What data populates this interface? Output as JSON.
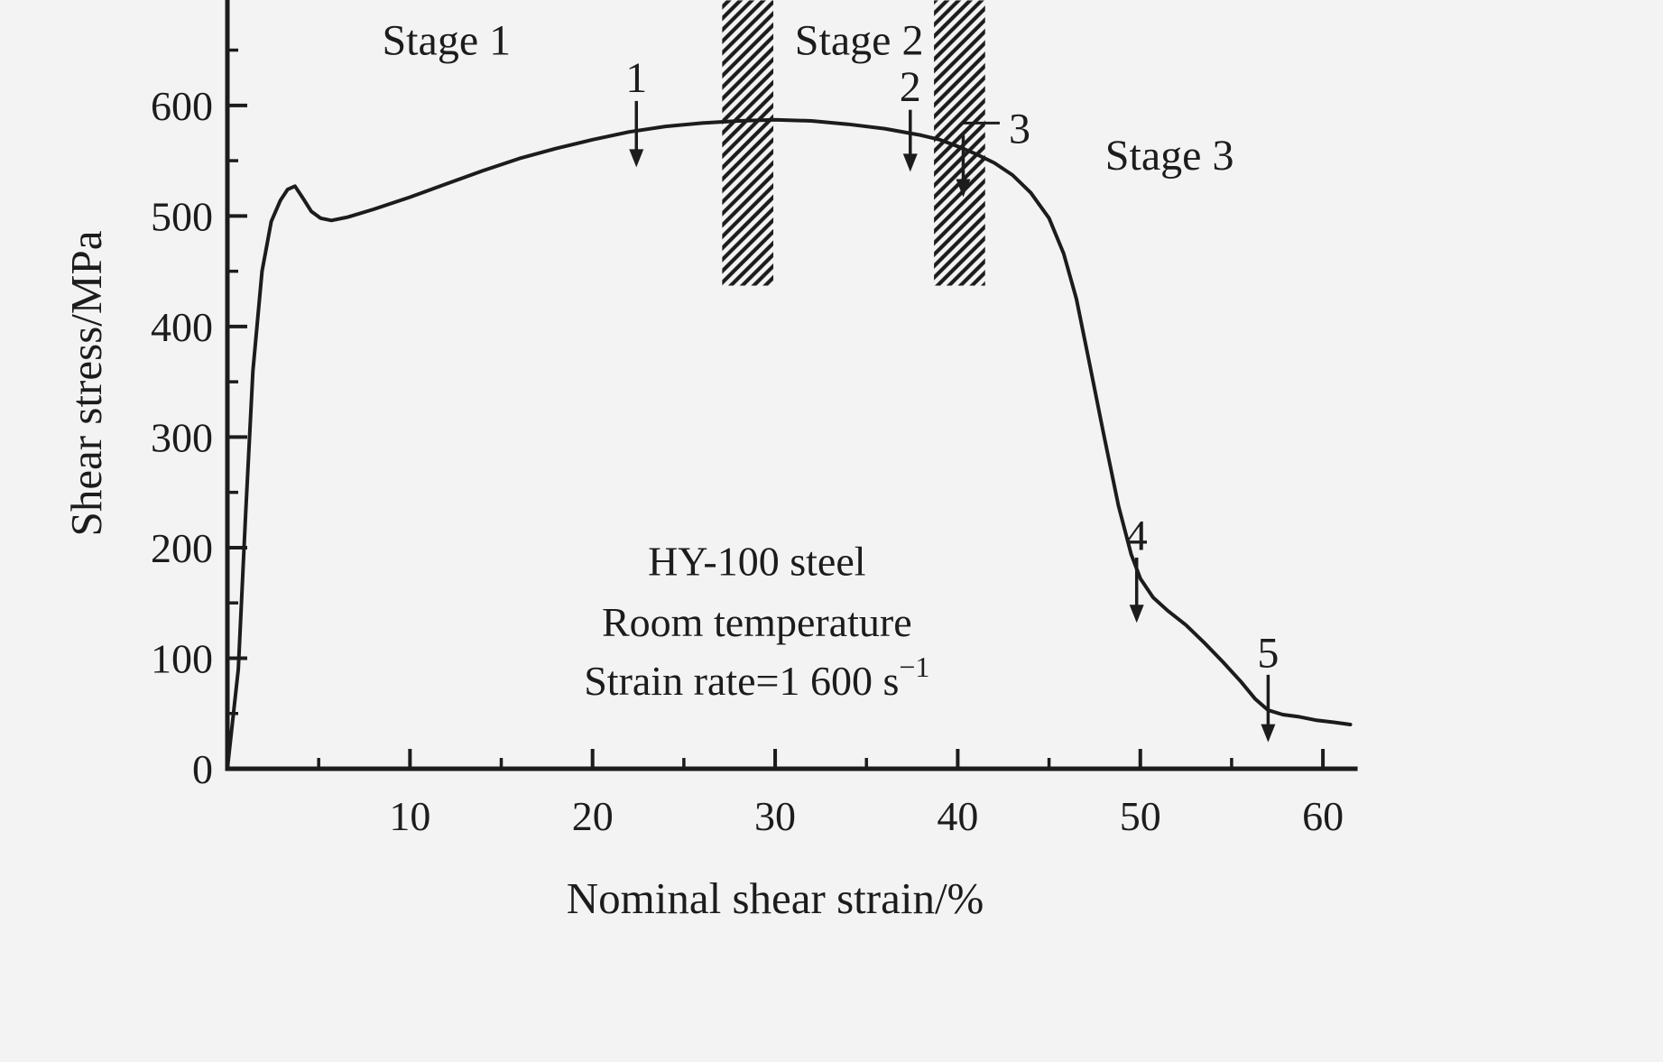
{
  "chart_data": {
    "type": "line",
    "title": "",
    "xlabel": "Nominal shear strain/%",
    "ylabel": "Shear stress/MPa",
    "xlim": [
      0,
      61.9
    ],
    "ylim": [
      0,
      695
    ],
    "grid": false,
    "xticks": {
      "major": [
        10,
        20,
        30,
        40,
        50,
        60
      ],
      "minor": [
        5,
        15,
        25,
        35,
        45,
        55
      ]
    },
    "yticks": {
      "major": [
        0,
        100,
        200,
        300,
        400,
        500,
        600
      ],
      "minor": [
        50,
        150,
        250,
        350,
        450,
        550,
        650
      ]
    },
    "series": [
      {
        "name": "HY-100 steel shear stress vs nominal shear strain",
        "points": [
          [
            0,
            0
          ],
          [
            0.6,
            90
          ],
          [
            1.0,
            230
          ],
          [
            1.4,
            360
          ],
          [
            1.9,
            450
          ],
          [
            2.4,
            495
          ],
          [
            2.9,
            514
          ],
          [
            3.3,
            524
          ],
          [
            3.7,
            527
          ],
          [
            4.1,
            517
          ],
          [
            4.6,
            504
          ],
          [
            5.1,
            498
          ],
          [
            5.7,
            496
          ],
          [
            6.6,
            499
          ],
          [
            8,
            506
          ],
          [
            10,
            517
          ],
          [
            12,
            529
          ],
          [
            14,
            541
          ],
          [
            16,
            552
          ],
          [
            18,
            561
          ],
          [
            20,
            569
          ],
          [
            22,
            576
          ],
          [
            24,
            581
          ],
          [
            26,
            584
          ],
          [
            28,
            586
          ],
          [
            30,
            587
          ],
          [
            32,
            586
          ],
          [
            34,
            583
          ],
          [
            36,
            579
          ],
          [
            38,
            573
          ],
          [
            39,
            569
          ],
          [
            40,
            563
          ],
          [
            41,
            556
          ],
          [
            42,
            548
          ],
          [
            43,
            537
          ],
          [
            44,
            521
          ],
          [
            45,
            498
          ],
          [
            45.8,
            466
          ],
          [
            46.5,
            425
          ],
          [
            47.2,
            368
          ],
          [
            48,
            302
          ],
          [
            48.8,
            238
          ],
          [
            49.5,
            194
          ],
          [
            50,
            172
          ],
          [
            50.7,
            155
          ],
          [
            51.5,
            143
          ],
          [
            52.5,
            130
          ],
          [
            53.5,
            114
          ],
          [
            54.5,
            97
          ],
          [
            55.5,
            79
          ],
          [
            56.3,
            63
          ],
          [
            57,
            53
          ],
          [
            57.8,
            49
          ],
          [
            58.7,
            47
          ],
          [
            59.6,
            44
          ],
          [
            60.6,
            42
          ],
          [
            61.5,
            40
          ]
        ]
      }
    ],
    "hatched_bands": [
      {
        "x1": 27.1,
        "x2": 29.9,
        "y1": 437,
        "y2": 695
      },
      {
        "x1": 38.7,
        "x2": 41.5,
        "y1": 437,
        "y2": 695
      }
    ],
    "stage_labels": [
      {
        "text": "Stage 1",
        "x": 12.0,
        "y": 646
      },
      {
        "text": "Stage 2",
        "x": 34.6,
        "y": 646
      },
      {
        "text": "Stage 3",
        "x": 51.6,
        "y": 542
      }
    ],
    "arrows": [
      {
        "label": "1",
        "x": 22.4,
        "from": 604,
        "to": 544,
        "label_x": 22.4,
        "label_y": 612,
        "align": "middle"
      },
      {
        "label": "2",
        "x": 37.4,
        "from": 596,
        "to": 540,
        "label_x": 37.4,
        "label_y": 604,
        "align": "middle"
      },
      {
        "label": "3",
        "x": 40.3,
        "from": 573,
        "to": 517,
        "label_x": 42.8,
        "label_y": 566,
        "align": "start"
      },
      {
        "label": "4",
        "x": 49.8,
        "from": 191,
        "to": 132,
        "label_x": 49.8,
        "label_y": 198,
        "align": "middle"
      },
      {
        "label": "5",
        "x": 57.0,
        "from": 85,
        "to": 24,
        "label_x": 57.0,
        "label_y": 92,
        "align": "middle"
      }
    ],
    "callout_line": {
      "x1": 40.2,
      "y1": 584,
      "x2": 42.3,
      "y2": 584
    },
    "annotation": {
      "x": 29.0,
      "lines": [
        {
          "text": "HY-100 steel",
          "y": 175
        },
        {
          "text": "Room temperature",
          "y": 120
        },
        {
          "text": "Strain rate=1 600 s",
          "sup": "−1",
          "y": 67
        }
      ]
    },
    "colors": {
      "background": "#f3f3f3",
      "ink": "#1c1c1c"
    }
  }
}
